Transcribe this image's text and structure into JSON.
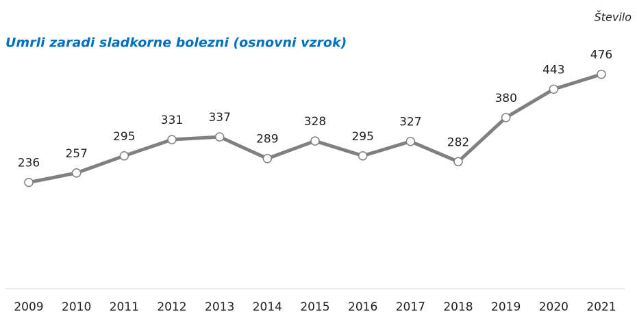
{
  "chart_data": {
    "type": "line",
    "title": "Umrli zaradi sladkorne bolezni (osnovni vzrok)",
    "subtitle": "Število",
    "categories": [
      "2009",
      "2010",
      "2011",
      "2012",
      "2013",
      "2014",
      "2015",
      "2016",
      "2017",
      "2018",
      "2019",
      "2020",
      "2021"
    ],
    "values": [
      236,
      257,
      295,
      331,
      337,
      289,
      328,
      295,
      327,
      282,
      380,
      443,
      476
    ],
    "color": "#808080",
    "ylim": [
      0,
      600
    ]
  }
}
